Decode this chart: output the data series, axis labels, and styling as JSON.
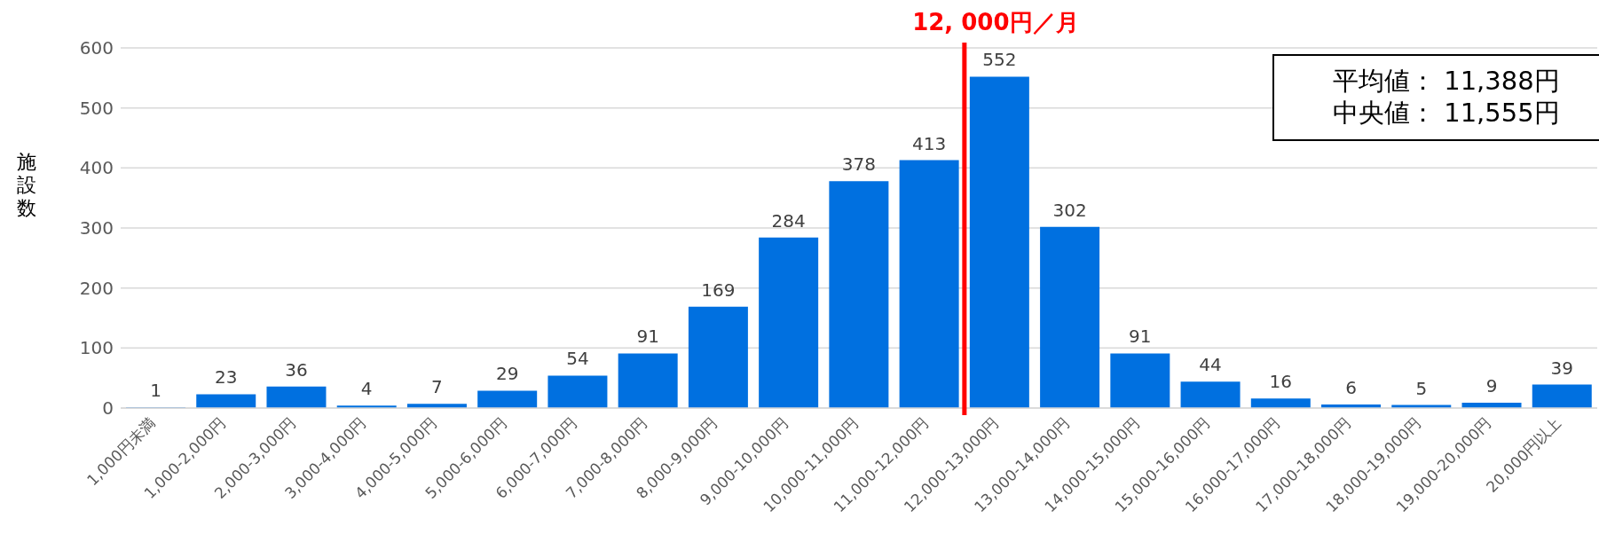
{
  "chart_data": {
    "type": "bar",
    "ylabel": "施設数",
    "categories": [
      "1,000円未満",
      "1,000-2,000円",
      "2,000-3,000円",
      "3,000-4,000円",
      "4,000-5,000円",
      "5,000-6,000円",
      "6,000-7,000円",
      "7,000-8,000円",
      "8,000-9,000円",
      "9,000-10,000円",
      "10,000-11,000円",
      "11,000-12,000円",
      "12,000-13,000円",
      "13,000-14,000円",
      "14,000-15,000円",
      "15,000-16,000円",
      "16,000-17,000円",
      "17,000-18,000円",
      "18,000-19,000円",
      "19,000-20,000円",
      "20,000円以上"
    ],
    "values": [
      1,
      23,
      36,
      4,
      7,
      29,
      54,
      91,
      169,
      284,
      378,
      413,
      552,
      302,
      91,
      44,
      16,
      6,
      5,
      9,
      39
    ],
    "color": "#0070e0",
    "data_labels": true,
    "ylim": [
      0,
      600
    ],
    "yticks": [
      0,
      100,
      200,
      300,
      400,
      500,
      600
    ],
    "grid": "y",
    "ref_lines": [
      {
        "axis": "x",
        "value": "12,000-13,000円",
        "label": "12, 000円／月",
        "color": "#ff0000"
      }
    ],
    "annotations": [
      "平均値： 11,388円",
      "中央値： 11,555円"
    ]
  }
}
